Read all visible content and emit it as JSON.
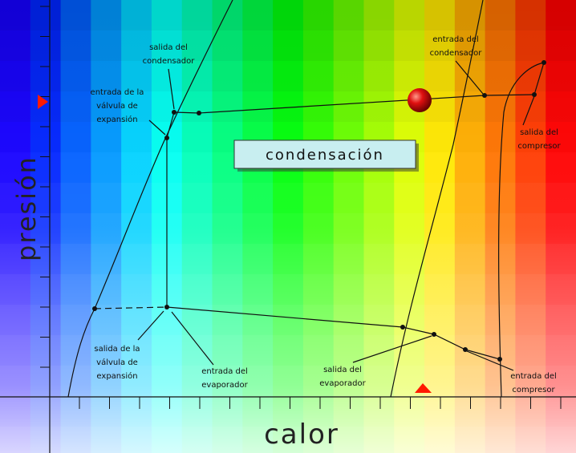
{
  "axes": {
    "y_label": "presión",
    "x_label": "calor"
  },
  "state_box": "condensación",
  "labels": [
    {
      "lines": [
        "salida del",
        "condensador"
      ]
    },
    {
      "lines": [
        "entrada de la",
        "válvula de",
        "expansión"
      ]
    },
    {
      "lines": [
        "entrada del",
        "condensador"
      ]
    },
    {
      "lines": [
        "salida del",
        "compresor"
      ]
    },
    {
      "lines": [
        "salida de la",
        "válvula de",
        "expansión"
      ]
    },
    {
      "lines": [
        "entrada del",
        "evaporador"
      ]
    },
    {
      "lines": [
        "salida del",
        "evaporador"
      ]
    },
    {
      "lines": [
        "entrada del",
        "compresor"
      ]
    }
  ]
}
